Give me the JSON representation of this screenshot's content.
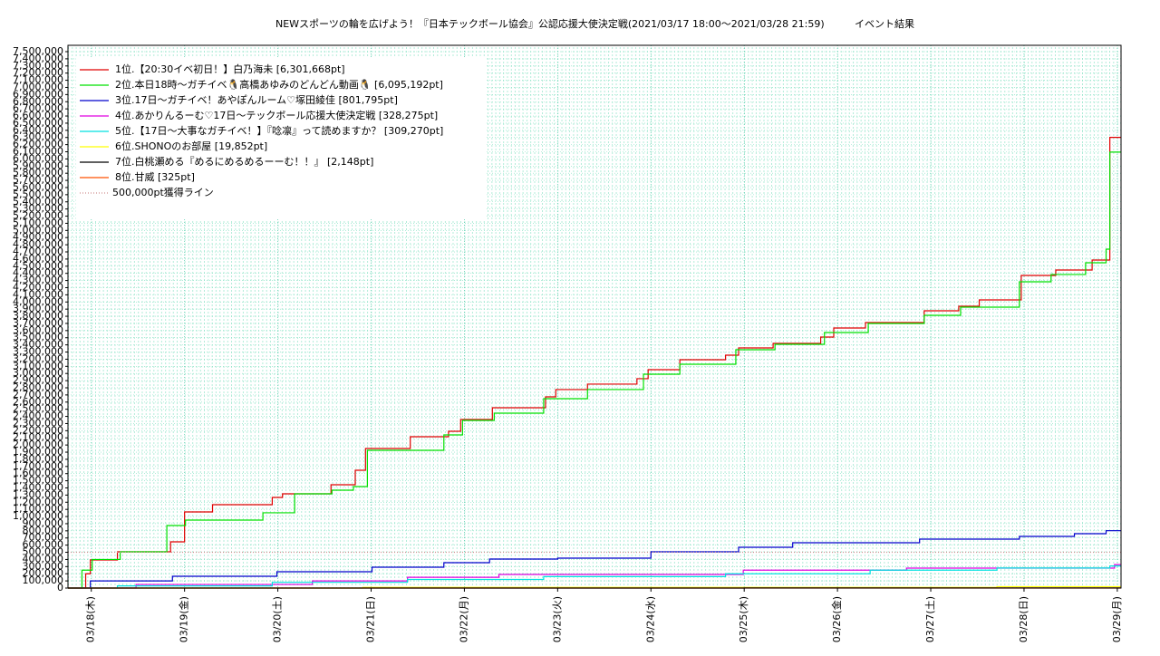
{
  "chart_data": {
    "type": "line",
    "title": "NEWスポーツの輪を広げよう！『日本テックボール協会』公認応援大使決定戦(2021/03/17 18:00〜2021/03/28 21:59)",
    "subtitle": "イベント結果",
    "xlim": [
      17.75,
      29.04
    ],
    "xticks": [
      {
        "value": 18,
        "label": "03/18(木)"
      },
      {
        "value": 19,
        "label": "03/19(金)"
      },
      {
        "value": 20,
        "label": "03/20(土)"
      },
      {
        "value": 21,
        "label": "03/21(日)"
      },
      {
        "value": 22,
        "label": "03/22(月)"
      },
      {
        "value": 23,
        "label": "03/23(火)"
      },
      {
        "value": 24,
        "label": "03/24(水)"
      },
      {
        "value": 25,
        "label": "03/25(木)"
      },
      {
        "value": 26,
        "label": "03/26(金)"
      },
      {
        "value": 27,
        "label": "03/27(土)"
      },
      {
        "value": 28,
        "label": "03/28(日)"
      },
      {
        "value": 29,
        "label": "03/29(月)"
      }
    ],
    "ylim": [
      0,
      7500000
    ],
    "yticks": [
      0,
      {
        "value": 100000,
        "label": "100,000"
      },
      {
        "value": 200000,
        "label": "200,000"
      },
      {
        "value": 300000,
        "label": "300,000"
      },
      {
        "value": 400000,
        "label": "400,000"
      },
      {
        "value": 500000,
        "label": "500,000"
      },
      {
        "value": 600000,
        "label": "600,000"
      },
      {
        "value": 700000,
        "label": "700,000"
      },
      {
        "value": 800000,
        "label": "800,000"
      },
      {
        "value": 900000,
        "label": "900,000"
      },
      {
        "value": 1000000,
        "label": "1,000,000"
      },
      {
        "value": 1100000,
        "label": "1,100,000"
      },
      {
        "value": 1200000,
        "label": "1,200,000"
      },
      {
        "value": 1300000,
        "label": "1,300,000"
      },
      {
        "value": 1400000,
        "label": "1,400,000"
      },
      {
        "value": 1500000,
        "label": "1,500,000"
      },
      {
        "value": 1600000,
        "label": "1,600,000"
      },
      {
        "value": 1700000,
        "label": "1,700,000"
      },
      {
        "value": 1800000,
        "label": "1,800,000"
      },
      {
        "value": 1900000,
        "label": "1,900,000"
      },
      {
        "value": 2000000,
        "label": "2,000,000"
      },
      {
        "value": 2100000,
        "label": "2,100,000"
      },
      {
        "value": 2200000,
        "label": "2,200,000"
      },
      {
        "value": 2300000,
        "label": "2,300,000"
      },
      {
        "value": 2400000,
        "label": "2,400,000"
      },
      {
        "value": 2500000,
        "label": "2,500,000"
      },
      {
        "value": 2600000,
        "label": "2,600,000"
      },
      {
        "value": 2700000,
        "label": "2,700,000"
      },
      {
        "value": 2800000,
        "label": "2,800,000"
      },
      {
        "value": 2900000,
        "label": "2,900,000"
      },
      {
        "value": 3000000,
        "label": "3,000,000"
      },
      {
        "value": 3100000,
        "label": "3,100,000"
      },
      {
        "value": 3200000,
        "label": "3,200,000"
      },
      {
        "value": 3300000,
        "label": "3,300,000"
      },
      {
        "value": 3400000,
        "label": "3,400,000"
      },
      {
        "value": 3500000,
        "label": "3,500,000"
      },
      {
        "value": 3600000,
        "label": "3,600,000"
      },
      {
        "value": 3700000,
        "label": "3,700,000"
      },
      {
        "value": 3800000,
        "label": "3,800,000"
      },
      {
        "value": 3900000,
        "label": "3,900,000"
      },
      {
        "value": 4000000,
        "label": "4,000,000"
      },
      {
        "value": 4100000,
        "label": "4,100,000"
      },
      {
        "value": 4200000,
        "label": "4,200,000"
      },
      {
        "value": 4300000,
        "label": "4,300,000"
      },
      {
        "value": 4400000,
        "label": "4,400,000"
      },
      {
        "value": 4500000,
        "label": "4,500,000"
      },
      {
        "value": 4600000,
        "label": "4,600,000"
      },
      {
        "value": 4700000,
        "label": "4,700,000"
      },
      {
        "value": 4800000,
        "label": "4,800,000"
      },
      {
        "value": 4900000,
        "label": "4,900,000"
      },
      {
        "value": 5000000,
        "label": "5,000,000"
      },
      {
        "value": 5100000,
        "label": "5,100,000"
      },
      {
        "value": 5200000,
        "label": "5,200,000"
      },
      {
        "value": 5300000,
        "label": "5,300,000"
      },
      {
        "value": 5400000,
        "label": "5,400,000"
      },
      {
        "value": 5500000,
        "label": "5,500,000"
      },
      {
        "value": 5600000,
        "label": "5,600,000"
      },
      {
        "value": 5700000,
        "label": "5,700,000"
      },
      {
        "value": 5800000,
        "label": "5,800,000"
      },
      {
        "value": 5900000,
        "label": "5,900,000"
      },
      {
        "value": 6000000,
        "label": "6,000,000"
      },
      {
        "value": 6100000,
        "label": "6,100,000"
      },
      {
        "value": 6200000,
        "label": "6,200,000"
      },
      {
        "value": 6300000,
        "label": "6,300,000"
      },
      {
        "value": 6400000,
        "label": "6,400,000"
      },
      {
        "value": 6500000,
        "label": "6,500,000"
      },
      {
        "value": 6600000,
        "label": "6,600,000"
      },
      {
        "value": 6700000,
        "label": "6,700,000"
      },
      {
        "value": 6800000,
        "label": "6,800,000"
      },
      {
        "value": 6900000,
        "label": "6,900,000"
      },
      {
        "value": 7000000,
        "label": "7,000,000"
      },
      {
        "value": 7100000,
        "label": "7,100,000"
      },
      {
        "value": 7200000,
        "label": "7,200,000"
      },
      {
        "value": 7300000,
        "label": "7,300,000"
      },
      {
        "value": 7400000,
        "label": "7,400,000"
      },
      {
        "value": 7500000,
        "label": "7,500,000"
      }
    ],
    "grid": true,
    "legend": "upper-left",
    "series": [
      {
        "name": "1位.【20:30イベ初日！】白乃海未 [6,301,668pt]",
        "color": "#e00000",
        "x": [
          17.75,
          17.94,
          17.99,
          18.28,
          18.85,
          19.0,
          19.3,
          19.94,
          20.05,
          20.57,
          20.83,
          20.94,
          21.42,
          21.83,
          21.96,
          22.3,
          22.87,
          22.98,
          23.32,
          23.85,
          23.97,
          24.31,
          24.8,
          24.94,
          25.31,
          25.82,
          25.96,
          26.3,
          26.93,
          27.3,
          27.52,
          27.97,
          28.34,
          28.73,
          28.92,
          29.04
        ],
        "values": [
          0,
          200000,
          393000,
          507000,
          646000,
          1064000,
          1166000,
          1267000,
          1318000,
          1444000,
          1647000,
          1951000,
          2116000,
          2192000,
          2357000,
          2521000,
          2673000,
          2775000,
          2851000,
          2927000,
          3053000,
          3193000,
          3256000,
          3357000,
          3421000,
          3509000,
          3636000,
          3712000,
          3877000,
          3940000,
          4029000,
          4371000,
          4447000,
          4586000,
          6301668,
          6301668
        ]
      },
      {
        "name": "2位.本日18時〜ガチイベ🐧高橋あゆみのどんどん動画🐧 [6,095,192pt]",
        "color": "#00e000",
        "x": [
          17.75,
          17.9,
          18.01,
          18.31,
          18.81,
          19.01,
          19.84,
          20.18,
          20.58,
          20.81,
          20.96,
          21.78,
          21.98,
          22.32,
          22.85,
          23.32,
          23.92,
          24.31,
          24.91,
          25.33,
          25.86,
          26.33,
          26.93,
          27.32,
          27.95,
          28.29,
          28.66,
          28.88,
          28.92,
          29.04
        ],
        "values": [
          0,
          250000,
          400000,
          507000,
          874000,
          950000,
          1052000,
          1318000,
          1368000,
          1419000,
          1926000,
          2141000,
          2344000,
          2445000,
          2648000,
          2775000,
          2990000,
          3129000,
          3332000,
          3408000,
          3573000,
          3699000,
          3813000,
          3927000,
          4282000,
          4384000,
          4548000,
          4738000,
          6095192,
          6095192
        ]
      },
      {
        "name": "3位.17日〜ガチイベ！あやぽんルーム♡塚田綾佳 [801,795pt]",
        "color": "#0000cc",
        "x": [
          17.75,
          17.99,
          18.87,
          19.99,
          21.01,
          21.78,
          22.27,
          23.0,
          24.0,
          24.94,
          25.52,
          26.88,
          27.95,
          28.54,
          28.88,
          29.04
        ],
        "values": [
          0,
          100000,
          165000,
          228000,
          291000,
          355000,
          405000,
          418000,
          507000,
          570000,
          633000,
          684000,
          722000,
          760000,
          801795,
          801795
        ]
      },
      {
        "name": "4位.あかりんるーむ♡17日〜テックボール応援大使決定戦 [328,275pt]",
        "color": "#e000e0",
        "x": [
          17.75,
          18.48,
          20.37,
          21.39,
          22.37,
          24.99,
          26.74,
          28.97,
          29.04
        ],
        "values": [
          0,
          50000,
          100000,
          150000,
          190000,
          250000,
          279000,
          328275,
          328275
        ]
      },
      {
        "name": "5位.【17日〜大事なガチイベ！】『唸凛』って読めますか？ [309,270pt]",
        "color": "#00e0e0",
        "x": [
          17.75,
          18.28,
          19.94,
          21.39,
          22.85,
          24.8,
          26.35,
          27.71,
          28.92,
          29.04
        ],
        "values": [
          0,
          30000,
          80000,
          120000,
          160000,
          200000,
          250000,
          280000,
          309270,
          309270
        ]
      },
      {
        "name": "6位.SHONOのお部屋 [19,852pt]",
        "color": "#ffff00",
        "x": [
          17.75,
          20.91,
          27.71,
          29.04
        ],
        "values": [
          0,
          10000,
          19852,
          19852
        ]
      },
      {
        "name": "7位.白桃瀬める『めるにめるめるーーむ！！』 [2,148pt]",
        "color": "#000000",
        "x": [
          17.75,
          25.0,
          29.04
        ],
        "values": [
          0,
          2148,
          2148
        ]
      },
      {
        "name": "8位.甘威 [325pt]",
        "color": "#ff5000",
        "x": [
          17.75,
          22.0,
          29.04
        ],
        "values": [
          0,
          325,
          325
        ]
      },
      {
        "name": "500,000pt獲得ライン",
        "color": "#d09090",
        "dashed": true,
        "x": [
          17.75,
          29.04
        ],
        "values": [
          500000,
          500000
        ]
      }
    ]
  }
}
